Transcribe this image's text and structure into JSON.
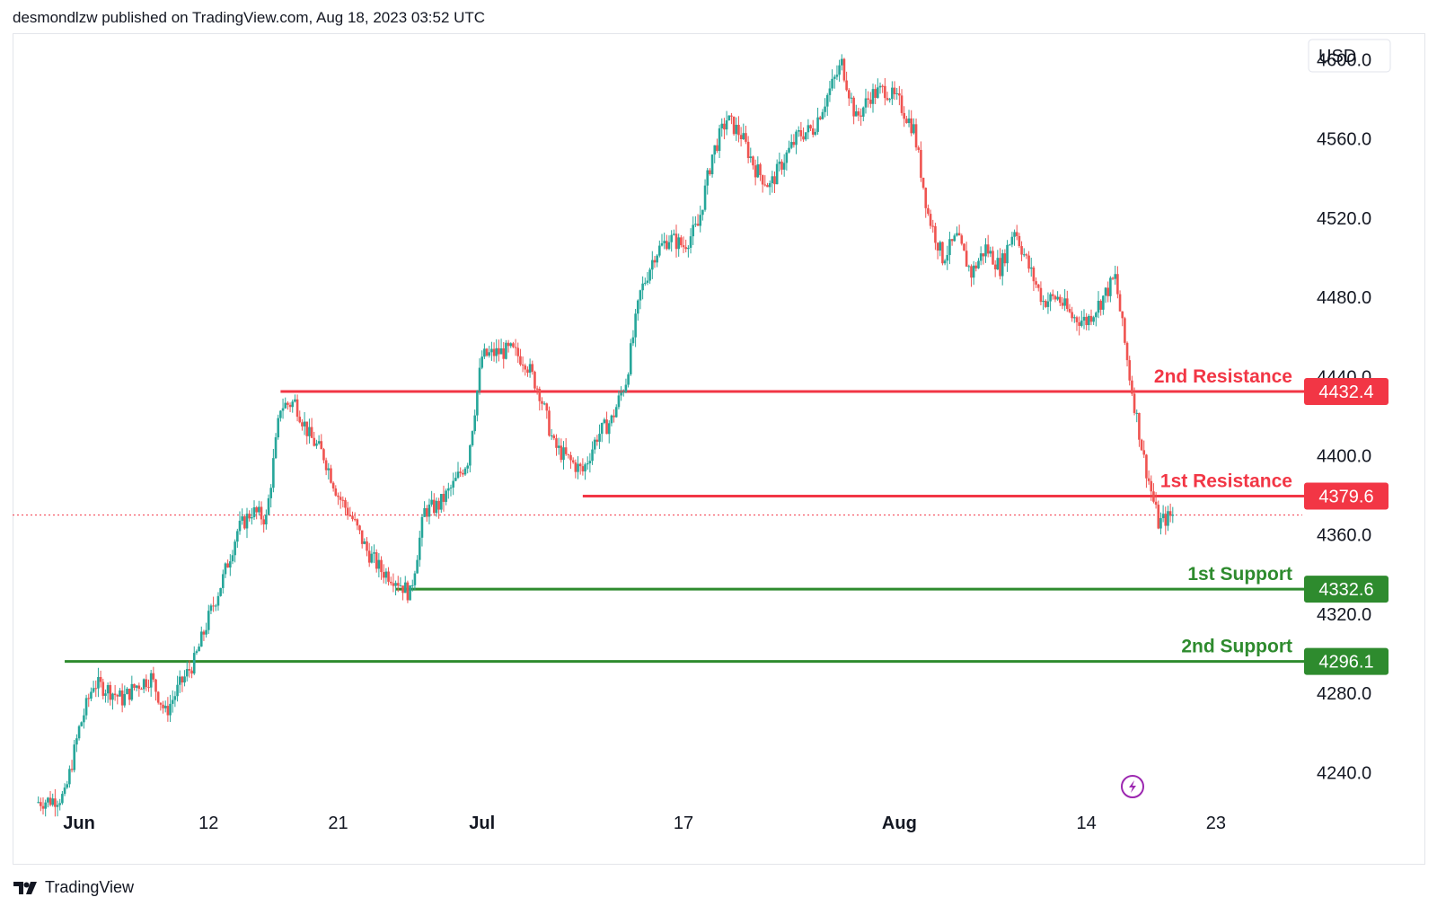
{
  "header": {
    "published_text": "desmondlzw published on TradingView.com, Aug 18, 2023 03:52 UTC"
  },
  "footer": {
    "brand": "TradingView",
    "logo_icon": "tradingview-logo-icon"
  },
  "colors": {
    "bull": "#26a69a",
    "bear": "#ef5350",
    "resistance": "#f23645",
    "support": "#2e8b2e",
    "current_price_line": "#f23645",
    "lightning": "#9c27b0",
    "axis_text": "#131722"
  },
  "chart_data": {
    "type": "candlestick",
    "title": "",
    "currency": "USD",
    "xlabel": "",
    "ylabel": "",
    "ylim": [
      4222,
      4612
    ],
    "xlim_days": [
      "2023-05-31",
      "2023-08-27"
    ],
    "grid": false,
    "y_ticks": [
      "4240.0",
      "4280.0",
      "4320.0",
      "4360.0",
      "4400.0",
      "4440.0",
      "4480.0",
      "4520.0",
      "4560.0",
      "4600.0"
    ],
    "x_ticks": [
      {
        "label": "Jun",
        "date": "2023-06-03",
        "bold": true
      },
      {
        "label": "12",
        "date": "2023-06-12",
        "bold": false
      },
      {
        "label": "21",
        "date": "2023-06-21",
        "bold": false
      },
      {
        "label": "Jul",
        "date": "2023-07-01",
        "bold": true
      },
      {
        "label": "17",
        "date": "2023-07-15",
        "bold": false
      },
      {
        "label": "Aug",
        "date": "2023-07-30",
        "bold": true
      },
      {
        "label": "14",
        "date": "2023-08-12",
        "bold": false
      },
      {
        "label": "23",
        "date": "2023-08-21",
        "bold": false
      }
    ],
    "levels": [
      {
        "name": "2nd Resistance",
        "value": 4432.4,
        "label": "4432.4",
        "kind": "resistance",
        "start_date": "2023-06-17"
      },
      {
        "name": "1st Resistance",
        "value": 4379.6,
        "label": "4379.6",
        "kind": "resistance",
        "start_date": "2023-07-08"
      },
      {
        "name": "1st Support",
        "value": 4332.6,
        "label": "4332.6",
        "kind": "support",
        "start_date": "2023-06-25"
      },
      {
        "name": "2nd Support",
        "value": 4296.1,
        "label": "4296.1",
        "kind": "support",
        "start_date": "2023-06-02"
      }
    ],
    "current_price": 4370,
    "path": [
      [
        "2023-05-31",
        4225
      ],
      [
        "2023-06-01",
        4226
      ],
      [
        "2023-06-02",
        4228
      ],
      [
        "2023-06-03",
        4262
      ],
      [
        "2023-06-04",
        4285
      ],
      [
        "2023-06-05",
        4282
      ],
      [
        "2023-06-06",
        4277
      ],
      [
        "2023-06-07",
        4284
      ],
      [
        "2023-06-08",
        4288
      ],
      [
        "2023-06-09",
        4270
      ],
      [
        "2023-06-10",
        4284
      ],
      [
        "2023-06-11",
        4296
      ],
      [
        "2023-06-12",
        4318
      ],
      [
        "2023-06-13",
        4338
      ],
      [
        "2023-06-14",
        4362
      ],
      [
        "2023-06-15",
        4372
      ],
      [
        "2023-06-16",
        4368
      ],
      [
        "2023-06-17",
        4425
      ],
      [
        "2023-06-18",
        4427
      ],
      [
        "2023-06-19",
        4410
      ],
      [
        "2023-06-20",
        4400
      ],
      [
        "2023-06-21",
        4380
      ],
      [
        "2023-06-22",
        4368
      ],
      [
        "2023-06-23",
        4352
      ],
      [
        "2023-06-24",
        4342
      ],
      [
        "2023-06-25",
        4338
      ],
      [
        "2023-06-26",
        4330
      ],
      [
        "2023-06-27",
        4372
      ],
      [
        "2023-06-28",
        4375
      ],
      [
        "2023-06-29",
        4385
      ],
      [
        "2023-06-30",
        4398
      ],
      [
        "2023-07-01",
        4450
      ],
      [
        "2023-07-02",
        4452
      ],
      [
        "2023-07-03",
        4453
      ],
      [
        "2023-07-04",
        4448
      ],
      [
        "2023-07-05",
        4432
      ],
      [
        "2023-07-06",
        4405
      ],
      [
        "2023-07-07",
        4398
      ],
      [
        "2023-07-08",
        4392
      ],
      [
        "2023-07-09",
        4410
      ],
      [
        "2023-07-10",
        4418
      ],
      [
        "2023-07-11",
        4438
      ],
      [
        "2023-07-12",
        4482
      ],
      [
        "2023-07-13",
        4502
      ],
      [
        "2023-07-14",
        4510
      ],
      [
        "2023-07-15",
        4506
      ],
      [
        "2023-07-16",
        4516
      ],
      [
        "2023-07-17",
        4552
      ],
      [
        "2023-07-18",
        4570
      ],
      [
        "2023-07-19",
        4562
      ],
      [
        "2023-07-20",
        4545
      ],
      [
        "2023-07-21",
        4536
      ],
      [
        "2023-07-22",
        4550
      ],
      [
        "2023-07-23",
        4562
      ],
      [
        "2023-07-24",
        4565
      ],
      [
        "2023-07-25",
        4582
      ],
      [
        "2023-07-26",
        4598
      ],
      [
        "2023-07-27",
        4570
      ],
      [
        "2023-07-28",
        4582
      ],
      [
        "2023-07-29",
        4585
      ],
      [
        "2023-07-30",
        4578
      ],
      [
        "2023-07-31",
        4565
      ],
      [
        "2023-08-01",
        4522
      ],
      [
        "2023-08-02",
        4500
      ],
      [
        "2023-08-03",
        4510
      ],
      [
        "2023-08-04",
        4492
      ],
      [
        "2023-08-05",
        4505
      ],
      [
        "2023-08-06",
        4495
      ],
      [
        "2023-08-07",
        4515
      ],
      [
        "2023-08-08",
        4495
      ],
      [
        "2023-08-09",
        4478
      ],
      [
        "2023-08-10",
        4480
      ],
      [
        "2023-08-11",
        4470
      ],
      [
        "2023-08-12",
        4468
      ],
      [
        "2023-08-13",
        4478
      ],
      [
        "2023-08-14",
        4490
      ],
      [
        "2023-08-15",
        4440
      ],
      [
        "2023-08-16",
        4398
      ],
      [
        "2023-08-17",
        4366
      ],
      [
        "2023-08-18",
        4370
      ]
    ]
  }
}
